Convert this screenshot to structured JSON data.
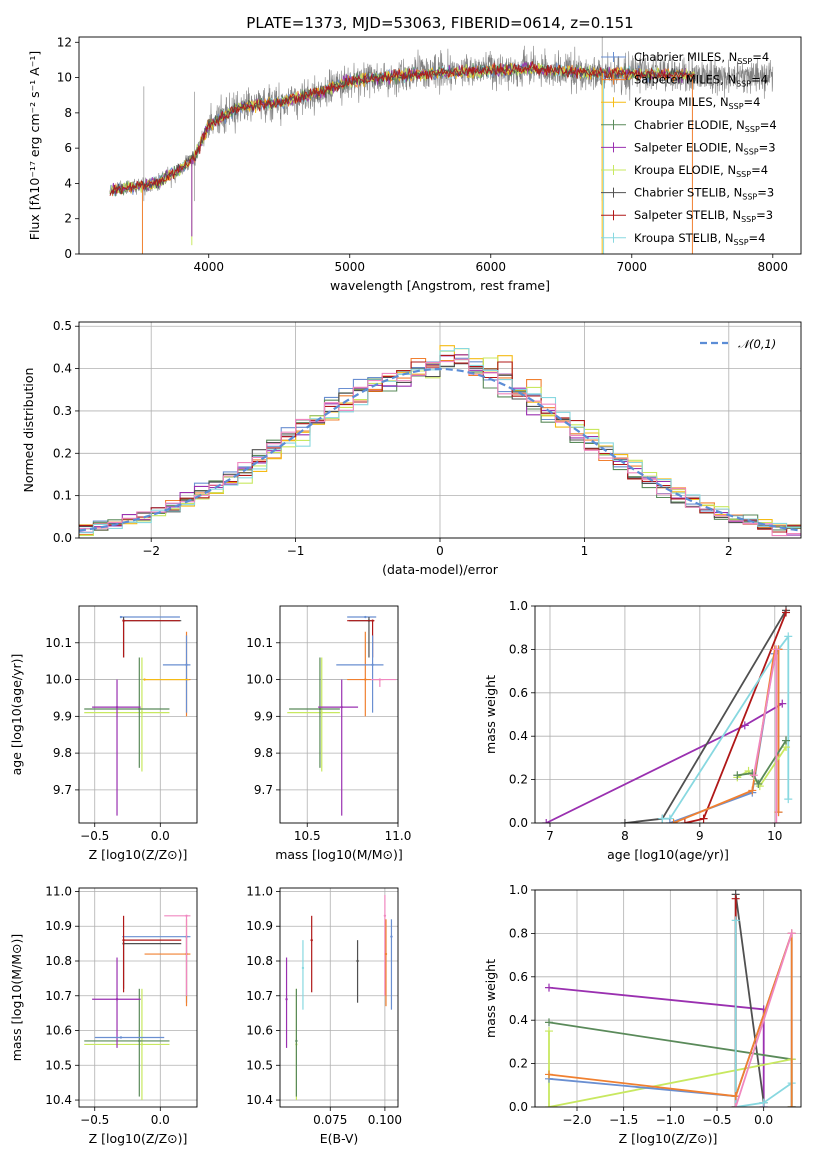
{
  "colors": [
    "#6a8fd1",
    "#f08030",
    "#f5bb15",
    "#5a8a5a",
    "#9a30b0",
    "#c8e860",
    "#505050",
    "#b01818",
    "#88d8e0",
    "#f088c0"
  ],
  "chart_data": [
    {
      "id": "spectrum",
      "type": "line",
      "title": "PLATE=1373, MJD=53063, FIBERID=0614, z=0.151",
      "xlabel": "wavelength [Angstrom, rest frame]",
      "ylabel": "Flux [fλ10⁻¹⁷ erg cm⁻² s⁻¹ A⁻¹]",
      "xlim": [
        3080,
        8200
      ],
      "ylim": [
        0,
        12.3
      ],
      "xticks": [
        4000,
        5000,
        6000,
        7000,
        8000
      ],
      "yticks": [
        0,
        2,
        4,
        6,
        8,
        10,
        12
      ],
      "data_color": "#808080",
      "legend": {
        "placement": "top-right",
        "entries": [
          "Chabrier MILES, N_SSP=4",
          "Salpeter MILES, N_SSP=4",
          "Kroupa MILES, N_SSP=4",
          "Chabrier ELODIE, N_SSP=4",
          "Salpeter ELODIE, N_SSP=3",
          "Kroupa ELODIE, N_SSP=4",
          "Chabrier STELIB, N_SSP=3",
          "Salpeter STELIB, N_SSP=3",
          "Kroupa STELIB, N_SSP=4"
        ],
        "entry_colors": [
          0,
          1,
          2,
          3,
          4,
          5,
          6,
          7,
          8
        ]
      },
      "continuum": {
        "wavelength": [
          3300,
          3450,
          3550,
          3650,
          3800,
          3900,
          4000,
          4200,
          4500,
          4800,
          5000,
          5200,
          5500,
          5800,
          6000,
          6300,
          6600,
          7000,
          7200,
          7450
        ],
        "flux": [
          3.6,
          3.8,
          3.9,
          4.1,
          4.8,
          5.5,
          7.3,
          8.3,
          8.6,
          9.2,
          9.8,
          10.0,
          10.2,
          10.3,
          10.4,
          10.5,
          10.3,
          10.2,
          10.2,
          10.1
        ]
      },
      "data_range": [
        3300,
        8000
      ],
      "model_range": [
        3300,
        7450
      ],
      "model_drops": [
        {
          "color": 1,
          "x": 3530,
          "y": 0.7
        },
        {
          "color": 5,
          "x": 3880,
          "y": 1.5
        },
        {
          "color": 4,
          "x": 3880,
          "y": 2.0
        },
        {
          "color": 2,
          "x": 6790,
          "y": 1.0
        },
        {
          "color": 8,
          "x": 6800,
          "y": 0.7
        },
        {
          "color": 1,
          "x": 7430,
          "y": 1.0
        }
      ]
    },
    {
      "id": "residuals",
      "type": "histogram",
      "xlabel": "(data-model)/error",
      "ylabel": "Normed distribution",
      "xlim": [
        -2.5,
        2.5
      ],
      "ylim": [
        0,
        0.51
      ],
      "xticks": [
        -2,
        -1,
        0,
        1,
        2
      ],
      "yticks": [
        0.0,
        0.1,
        0.2,
        0.3,
        0.4,
        0.5
      ],
      "bin_width": 0.1,
      "legend": {
        "placement": "top-right",
        "label": "𝒩(0,1)",
        "color": "#5b8dd6"
      }
    },
    {
      "id": "age-vs-Z",
      "type": "errorbar",
      "xlabel": "Z [log10(Z/Z⊙)]",
      "ylabel": "age  [log10(age/yr)]",
      "xlim": [
        -0.62,
        0.28
      ],
      "ylim": [
        9.61,
        10.2
      ],
      "xticks": [
        -0.5,
        0.0
      ],
      "yticks": [
        9.7,
        9.8,
        9.9,
        10.0,
        10.1
      ],
      "points": [
        {
          "c": 0,
          "x": -0.3,
          "y": 10.17,
          "x0": -0.3,
          "x1": 0.15,
          "y0": 10.17,
          "y1": 10.17
        },
        {
          "c": 6,
          "x": -0.28,
          "y": 10.16,
          "x0": -0.28,
          "x1": 0.16,
          "y0": 10.06,
          "y1": 10.17
        },
        {
          "c": 7,
          "x": -0.28,
          "y": 10.16,
          "x0": -0.28,
          "x1": 0.15,
          "y0": 10.06,
          "y1": 10.16
        },
        {
          "c": 5,
          "x": -0.14,
          "y": 9.91,
          "x0": -0.58,
          "x1": 0.07,
          "y0": 9.75,
          "y1": 10.06
        },
        {
          "c": 3,
          "x": -0.16,
          "y": 9.92,
          "x0": -0.58,
          "x1": 0.07,
          "y0": 9.76,
          "y1": 10.06
        },
        {
          "c": 4,
          "x": -0.33,
          "y": 9.925,
          "x0": -0.52,
          "x1": -0.15,
          "y0": 9.63,
          "y1": 10.0
        },
        {
          "c": 1,
          "x": 0.2,
          "y": 10.0,
          "x0": -0.12,
          "x1": 0.23,
          "y0": 9.9,
          "y1": 10.13
        },
        {
          "c": 0,
          "x": 0.2,
          "y": 10.04,
          "x0": 0.02,
          "x1": 0.23,
          "y0": 9.91,
          "y1": 10.12
        },
        {
          "c": 2,
          "x": -0.12,
          "y": 10.0,
          "x0": -0.12,
          "x1": 0.22,
          "y0": 10.0,
          "y1": 10.0
        }
      ]
    },
    {
      "id": "age-vs-mass",
      "type": "errorbar",
      "xlabel": "mass [log10(M/M⊙)]",
      "ylabel": "",
      "xlim": [
        10.35,
        11.0
      ],
      "ylim": [
        9.61,
        10.2
      ],
      "xticks": [
        10.5,
        11.0
      ],
      "yticks": [
        9.7,
        9.8,
        9.9,
        10.0,
        10.1
      ],
      "points": [
        {
          "c": 0,
          "x": 10.82,
          "y": 10.17,
          "x0": 10.72,
          "x1": 10.88,
          "y0": 10.17,
          "y1": 10.17
        },
        {
          "c": 6,
          "x": 10.84,
          "y": 10.16,
          "x0": 10.73,
          "x1": 10.85,
          "y0": 10.06,
          "y1": 10.17
        },
        {
          "c": 7,
          "x": 10.86,
          "y": 10.16,
          "x0": 10.72,
          "x1": 10.87,
          "y0": 10.06,
          "y1": 10.16
        },
        {
          "c": 5,
          "x": 10.58,
          "y": 9.91,
          "x0": 10.39,
          "x1": 10.68,
          "y0": 9.75,
          "y1": 10.06
        },
        {
          "c": 3,
          "x": 10.57,
          "y": 9.92,
          "x0": 10.4,
          "x1": 10.68,
          "y0": 9.76,
          "y1": 10.06
        },
        {
          "c": 4,
          "x": 10.69,
          "y": 9.925,
          "x0": 10.56,
          "x1": 10.78,
          "y0": 9.63,
          "y1": 10.0
        },
        {
          "c": 1,
          "x": 10.82,
          "y": 10.0,
          "x0": 10.72,
          "x1": 10.92,
          "y0": 9.9,
          "y1": 10.13
        },
        {
          "c": 0,
          "x": 10.86,
          "y": 10.04,
          "x0": 10.66,
          "x1": 10.92,
          "y0": 9.91,
          "y1": 10.12
        },
        {
          "c": 9,
          "x": 10.9,
          "y": 10.0,
          "x0": 10.85,
          "x1": 10.99,
          "y0": 9.98,
          "y1": 10.0
        }
      ]
    },
    {
      "id": "weight-vs-age",
      "type": "line",
      "xlabel": "age  [log10(age/yr)]",
      "ylabel": "mass weight",
      "xlim": [
        6.8,
        10.35
      ],
      "ylim": [
        0,
        1.0
      ],
      "xticks": [
        7,
        8,
        9,
        10
      ],
      "yticks": [
        0.0,
        0.2,
        0.4,
        0.6,
        0.8,
        1.0
      ],
      "series": [
        {
          "c": 4,
          "x": [
            6.95,
            9.6,
            10.1
          ],
          "y": [
            0.0,
            0.45,
            0.55
          ]
        },
        {
          "c": 6,
          "x": [
            8.0,
            8.5,
            10.15
          ],
          "y": [
            0.0,
            0.02,
            0.98
          ]
        },
        {
          "c": 7,
          "x": [
            8.8,
            9.05,
            10.15
          ],
          "y": [
            0.0,
            0.02,
            0.97
          ]
        },
        {
          "c": 8,
          "x": [
            8.5,
            8.6,
            10.05,
            10.18,
            10.18
          ],
          "y": [
            0.02,
            0.02,
            0.8,
            0.86,
            0.11
          ]
        },
        {
          "c": 0,
          "x": [
            8.6,
            9.7,
            10.0,
            10.05,
            10.05
          ],
          "y": [
            0.0,
            0.14,
            0.78,
            0.8,
            0.05
          ]
        },
        {
          "c": 1,
          "x": [
            8.65,
            9.7,
            10.0,
            10.05,
            10.05
          ],
          "y": [
            0.0,
            0.15,
            0.8,
            0.8,
            0.05
          ]
        },
        {
          "c": 5,
          "x": [
            9.5,
            9.65,
            9.8,
            10.15,
            10.15
          ],
          "y": [
            0.21,
            0.24,
            0.17,
            0.35,
            0.35
          ]
        },
        {
          "c": 3,
          "x": [
            9.5,
            9.7,
            9.78,
            10.15,
            10.15
          ],
          "y": [
            0.22,
            0.23,
            0.18,
            0.38,
            0.38
          ]
        },
        {
          "c": 9,
          "x": [
            9.72,
            10.02,
            10.02
          ],
          "y": [
            0.22,
            0.8,
            0.0
          ]
        }
      ]
    },
    {
      "id": "mass-vs-Z",
      "type": "errorbar",
      "xlabel": "Z [log10(Z/Z⊙)]",
      "ylabel": "mass [log10(M/M⊙)]",
      "xlim": [
        -0.62,
        0.28
      ],
      "ylim": [
        10.38,
        11.01
      ],
      "xticks": [
        -0.5,
        0.0
      ],
      "yticks": [
        10.4,
        10.5,
        10.6,
        10.7,
        10.8,
        10.9,
        11.0
      ],
      "points": [
        {
          "c": 0,
          "x": 0.2,
          "y": 10.87,
          "x0": -0.29,
          "x1": 0.23,
          "y0": 10.68,
          "y1": 10.87
        },
        {
          "c": 6,
          "x": -0.28,
          "y": 10.85,
          "x0": -0.28,
          "x1": 0.16,
          "y0": 10.72,
          "y1": 10.86
        },
        {
          "c": 7,
          "x": -0.28,
          "y": 10.86,
          "x0": -0.28,
          "x1": 0.16,
          "y0": 10.71,
          "y1": 10.93
        },
        {
          "c": 5,
          "x": -0.14,
          "y": 10.56,
          "x0": -0.58,
          "x1": 0.07,
          "y0": 10.4,
          "y1": 10.72
        },
        {
          "c": 3,
          "x": -0.16,
          "y": 10.57,
          "x0": -0.58,
          "x1": 0.07,
          "y0": 10.41,
          "y1": 10.72
        },
        {
          "c": 4,
          "x": -0.33,
          "y": 10.69,
          "x0": -0.52,
          "x1": -0.15,
          "y0": 10.55,
          "y1": 10.81
        },
        {
          "c": 1,
          "x": 0.2,
          "y": 10.82,
          "x0": -0.12,
          "x1": 0.23,
          "y0": 10.67,
          "y1": 10.92
        },
        {
          "c": 0,
          "x": -0.3,
          "y": 10.58,
          "x0": -0.5,
          "x1": 0.03,
          "y0": 10.58,
          "y1": 10.58
        },
        {
          "c": 9,
          "x": 0.2,
          "y": 10.93,
          "x0": 0.03,
          "x1": 0.23,
          "y0": 10.7,
          "y1": 10.93
        }
      ]
    },
    {
      "id": "mass-vs-ebv",
      "type": "errorbar",
      "xlabel": "E(B-V)",
      "ylabel": "",
      "xlim": [
        0.052,
        0.106
      ],
      "ylim": [
        10.38,
        11.01
      ],
      "xticks": [
        0.075,
        0.1
      ],
      "yticks": [
        10.4,
        10.5,
        10.6,
        10.7,
        10.8,
        10.9,
        11.0
      ],
      "points": [
        {
          "c": 4,
          "x": 0.055,
          "y": 10.69,
          "x0": 0.055,
          "x1": 0.055,
          "y0": 10.55,
          "y1": 10.81
        },
        {
          "c": 5,
          "x": 0.0595,
          "y": 10.56,
          "x0": 0.0595,
          "x1": 0.0595,
          "y0": 10.4,
          "y1": 10.72
        },
        {
          "c": 3,
          "x": 0.0595,
          "y": 10.57,
          "x0": 0.0595,
          "x1": 0.0595,
          "y0": 10.41,
          "y1": 10.72
        },
        {
          "c": 8,
          "x": 0.0625,
          "y": 10.78,
          "x0": 0.0625,
          "x1": 0.0625,
          "y0": 10.66,
          "y1": 10.86
        },
        {
          "c": 7,
          "x": 0.0665,
          "y": 10.86,
          "x0": 0.0665,
          "x1": 0.0665,
          "y0": 10.71,
          "y1": 10.93
        },
        {
          "c": 6,
          "x": 0.0875,
          "y": 10.8,
          "x0": 0.0875,
          "x1": 0.0875,
          "y0": 10.68,
          "y1": 10.86
        },
        {
          "c": 9,
          "x": 0.1,
          "y": 10.93,
          "x0": 0.1,
          "x1": 0.1,
          "y0": 10.7,
          "y1": 10.99
        },
        {
          "c": 1,
          "x": 0.1005,
          "y": 10.82,
          "x0": 0.1005,
          "x1": 0.1005,
          "y0": 10.67,
          "y1": 10.92
        },
        {
          "c": 0,
          "x": 0.103,
          "y": 10.87,
          "x0": 0.103,
          "x1": 0.103,
          "y0": 10.66,
          "y1": 10.92
        }
      ]
    },
    {
      "id": "weight-vs-Z",
      "type": "line",
      "xlabel": "Z [log10(Z/Z⊙)]",
      "ylabel": "mass weight",
      "xlim": [
        -2.45,
        0.4
      ],
      "ylim": [
        0,
        1.0
      ],
      "xticks": [
        -2.0,
        -1.5,
        -1.0,
        -0.5,
        0.0
      ],
      "yticks": [
        0.0,
        0.2,
        0.4,
        0.6,
        0.8,
        1.0
      ],
      "series": [
        {
          "c": 4,
          "x": [
            -2.3,
            0.0,
            0.0
          ],
          "y": [
            0.55,
            0.45,
            0.0
          ]
        },
        {
          "c": 6,
          "x": [
            -0.3,
            -0.3,
            0.0
          ],
          "y": [
            0.0,
            0.98,
            0.02
          ]
        },
        {
          "c": 7,
          "x": [
            -0.3,
            -0.3
          ],
          "y": [
            0.0,
            0.96
          ]
        },
        {
          "c": 3,
          "x": [
            -2.3,
            0.3,
            0.3
          ],
          "y": [
            0.39,
            0.22,
            0.0
          ]
        },
        {
          "c": 5,
          "x": [
            -2.3,
            -2.3,
            0.3,
            0.3
          ],
          "y": [
            0.35,
            0.0,
            0.22,
            0.0
          ]
        },
        {
          "c": 8,
          "x": [
            -0.3,
            -0.3,
            0.0,
            0.3,
            0.3
          ],
          "y": [
            0.86,
            0.0,
            0.02,
            0.11,
            0.0
          ]
        },
        {
          "c": 0,
          "x": [
            -2.3,
            -0.3,
            0.3,
            0.3
          ],
          "y": [
            0.13,
            0.05,
            0.8,
            0.0
          ]
        },
        {
          "c": 1,
          "x": [
            -2.3,
            -0.3,
            0.3,
            0.3
          ],
          "y": [
            0.15,
            0.05,
            0.8,
            0.0
          ]
        },
        {
          "c": 9,
          "x": [
            -0.3,
            0.3
          ],
          "y": [
            0.0,
            0.8
          ]
        }
      ]
    }
  ]
}
